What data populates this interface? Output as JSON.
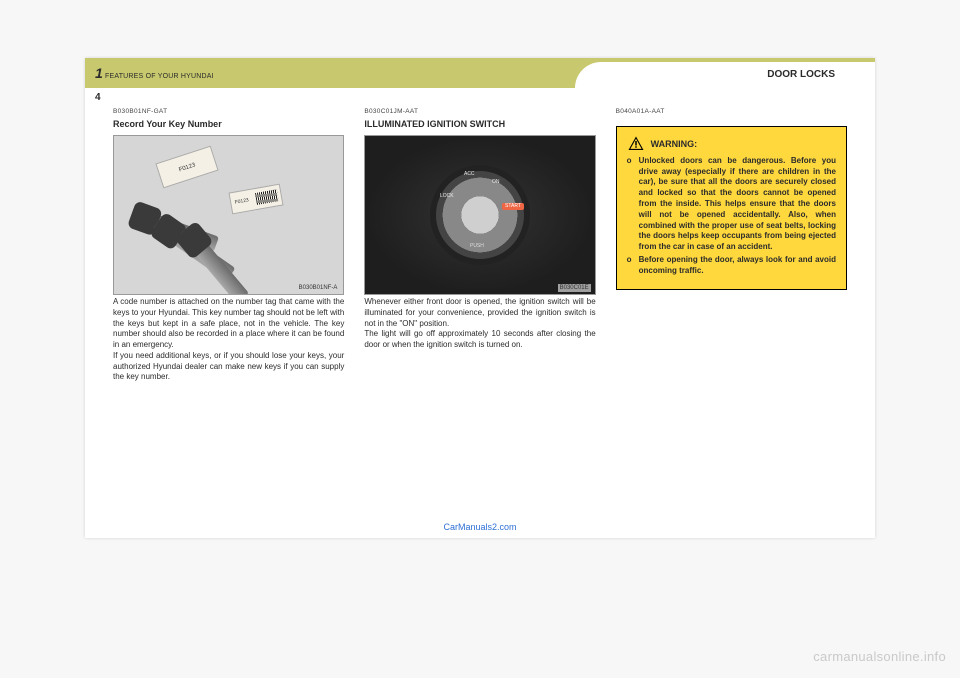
{
  "page": {
    "chapter_number": "1",
    "chapter_title": "FEATURES OF YOUR HYUNDAI",
    "page_number": "4",
    "section_title": "DOOR LOCKS",
    "footer_brand": "CarManuals2.com",
    "watermark": "carmanualsonline.info"
  },
  "col1": {
    "ref": "B030B01NF-GAT",
    "heading": "Record Your Key Number",
    "figure": {
      "tag1": "F0123",
      "tag2": "F0123",
      "caption": "B030B01NF-A"
    },
    "body": "A code number is attached on the number tag that came with the keys to your Hyundai. This key number tag should not be left with the keys but kept in a safe place, not in the vehicle. The key number should also be recorded in a place where it can be found in an emergency.\nIf you need additional keys, or if you should lose your keys, your authorized Hyundai dealer can make new keys if you can supply the key number."
  },
  "col2": {
    "ref": "B030C01JM-AAT",
    "heading": "ILLUMINATED IGNITION SWITCH",
    "figure": {
      "caption": "B030C01E",
      "labels": {
        "lock": "LOCK",
        "acc": "ACC",
        "on": "ON",
        "start": "START",
        "push": "PUSH"
      }
    },
    "body": "Whenever either front door is opened, the ignition switch will be illuminated for your convenience, provided the ignition switch is not in the \"ON\" position.\nThe light will go off approximately 10 seconds after closing the door or when the ignition switch is turned on."
  },
  "col3": {
    "ref": "B040A01A-AAT",
    "warning_title": "WARNING:",
    "items": [
      "Unlocked doors can be dangerous. Before you drive away (especially if there are children in the car), be sure that all the doors are securely closed and locked so that the doors cannot be opened from the inside. This helps ensure that the doors will not be opened accidentally. Also, when combined with the proper use of seat belts, locking the doors helps keep occupants from being ejected from the car in case of an accident.",
      "Before opening the door, always look for and avoid oncoming traffic."
    ],
    "list_marker": "o"
  },
  "colors": {
    "olive": "#c8c96f",
    "warning_bg": "#ffd83d",
    "link": "#2e6fd6"
  }
}
